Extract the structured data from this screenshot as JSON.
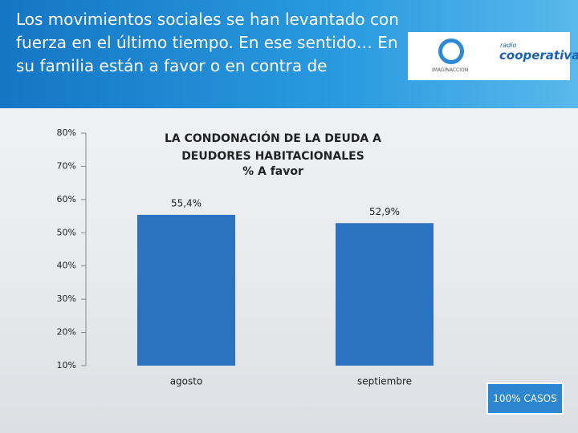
{
  "header": {
    "title": "Los movimientos sociales se han levantado con fuerza en el último tiempo. En ese sentido… En su familia están a favor o en contra de"
  },
  "logos": [
    "IMAGINACCION",
    "radio",
    "cooperativa"
  ],
  "footer_note": "100% CASOS",
  "chart_data": {
    "type": "bar",
    "title": "LA CONDONACIÓN DE LA DEUDA A DEUDORES HABITACIONALES",
    "subtitle": "% A favor",
    "categories": [
      "agosto",
      "septiembre"
    ],
    "values": [
      55.4,
      52.9
    ],
    "value_labels": [
      "55,4%",
      "52,9%"
    ],
    "color": "#2b72c0",
    "ylim": [
      10,
      80
    ],
    "yticks": [
      {
        "value": 10,
        "label": "10%"
      },
      {
        "value": 20,
        "label": "20%"
      },
      {
        "value": 30,
        "label": "30%"
      },
      {
        "value": 40,
        "label": "40%"
      },
      {
        "value": 50,
        "label": "50%"
      },
      {
        "value": 60,
        "label": "60%"
      },
      {
        "value": 70,
        "label": "70%"
      },
      {
        "value": 80,
        "label": "80%"
      }
    ]
  }
}
